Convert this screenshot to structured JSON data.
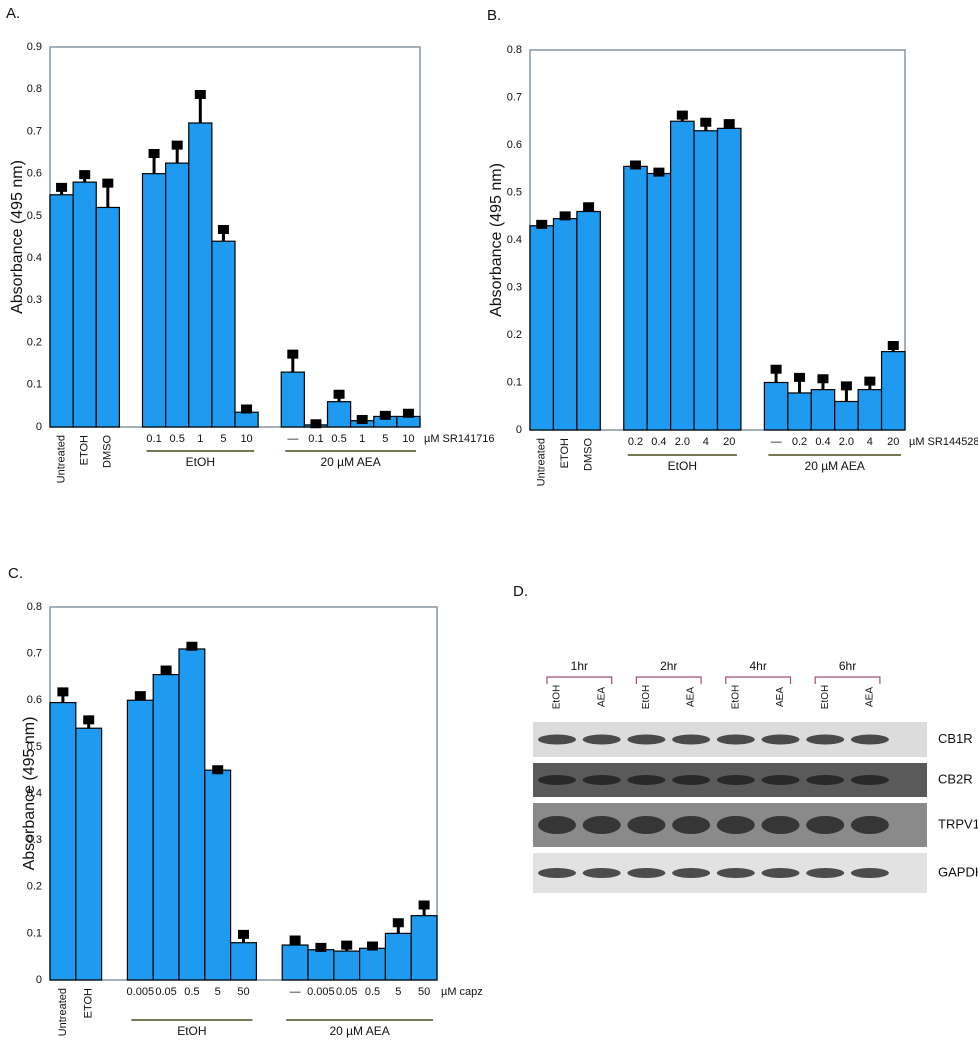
{
  "chart_data": [
    {
      "type": "bar",
      "title": "A.",
      "y_label": "Absorbance (495 nm)",
      "ylim": [
        0,
        0.9
      ],
      "yticks": [
        0,
        0.1,
        0.2,
        0.3,
        0.4,
        0.5,
        0.6,
        0.7,
        0.8,
        0.9
      ],
      "color": "#1e9bf0",
      "unit_label": "µM SR141716",
      "groups": [
        {
          "categories": [
            "Untreated",
            "ETOH",
            "DMSO"
          ],
          "values": [
            0.55,
            0.58,
            0.52
          ],
          "errors": [
            0.02,
            0.02,
            0.06
          ]
        },
        {
          "label": "EtOH",
          "categories": [
            "0.1",
            "0.5",
            "1",
            "5",
            "10"
          ],
          "values": [
            0.6,
            0.625,
            0.72,
            0.44,
            0.035
          ],
          "errors": [
            0.05,
            0.045,
            0.07,
            0.03,
            0.01
          ]
        },
        {
          "label": "20 µM AEA",
          "categories": [
            "—",
            "0.1",
            "0.5",
            "1",
            "5",
            "10"
          ],
          "values": [
            0.13,
            0.005,
            0.06,
            0.015,
            0.025,
            0.025
          ],
          "errors": [
            0.045,
            0.005,
            0.02,
            0.005,
            0.005,
            0.01
          ]
        }
      ]
    },
    {
      "type": "bar",
      "title": "B.",
      "y_label": "Absorbance (495 nm)",
      "ylim": [
        0,
        0.8
      ],
      "yticks": [
        0,
        0.1,
        0.2,
        0.3,
        0.4,
        0.5,
        0.6,
        0.7,
        0.8
      ],
      "color": "#1e9bf0",
      "unit_label": "µM SR144528",
      "groups": [
        {
          "categories": [
            "Untreated",
            "ETOH",
            "DMSO"
          ],
          "values": [
            0.43,
            0.445,
            0.46
          ],
          "errors": [
            0.005,
            0.008,
            0.012
          ]
        },
        {
          "label": "EtOH",
          "categories": [
            "0.2",
            "0.4",
            "2.0",
            "4",
            "20"
          ],
          "values": [
            0.555,
            0.54,
            0.65,
            0.63,
            0.635
          ],
          "errors": [
            0.005,
            0.005,
            0.015,
            0.02,
            0.012
          ]
        },
        {
          "label": "20 µM AEA",
          "categories": [
            "—",
            "0.2",
            "0.4",
            "2.0",
            "4",
            "20"
          ],
          "values": [
            0.1,
            0.078,
            0.085,
            0.06,
            0.085,
            0.165
          ],
          "errors": [
            0.03,
            0.035,
            0.025,
            0.035,
            0.02,
            0.015
          ]
        }
      ]
    },
    {
      "type": "bar",
      "title": "C.",
      "y_label": "Absorbance (495 nm)",
      "ylim": [
        0,
        0.8
      ],
      "yticks": [
        0,
        0.1,
        0.2,
        0.3,
        0.4,
        0.5,
        0.6,
        0.7,
        0.8
      ],
      "color": "#1e9bf0",
      "unit_label": "µM capz",
      "groups": [
        {
          "categories": [
            "Untreated",
            "ETOH"
          ],
          "values": [
            0.595,
            0.54
          ],
          "errors": [
            0.025,
            0.02
          ]
        },
        {
          "label": "EtOH",
          "categories": [
            "0.005",
            "0.05",
            "0.5",
            "5",
            "50"
          ],
          "values": [
            0.6,
            0.655,
            0.71,
            0.45,
            0.08
          ],
          "errors": [
            0.012,
            0.012,
            0.008,
            0.003,
            0.02
          ]
        },
        {
          "label": "20 µM AEA",
          "categories": [
            "—",
            "0.005",
            "0.05",
            "0.5",
            "5",
            "50"
          ],
          "values": [
            0.075,
            0.065,
            0.062,
            0.068,
            0.1,
            0.138
          ],
          "errors": [
            0.013,
            0.007,
            0.015,
            0.007,
            0.025,
            0.025
          ]
        }
      ]
    }
  ],
  "panel_d": {
    "title": "D.",
    "timepoints": [
      "1hr",
      "2hr",
      "4hr",
      "6hr"
    ],
    "lanes": [
      "EtOH",
      "AEA",
      "EtOH",
      "AEA",
      "EtOH",
      "AEA",
      "EtOH",
      "AEA"
    ],
    "proteins": [
      "CB1R",
      "CB2R",
      "TRPV1",
      "GAPDH"
    ]
  }
}
